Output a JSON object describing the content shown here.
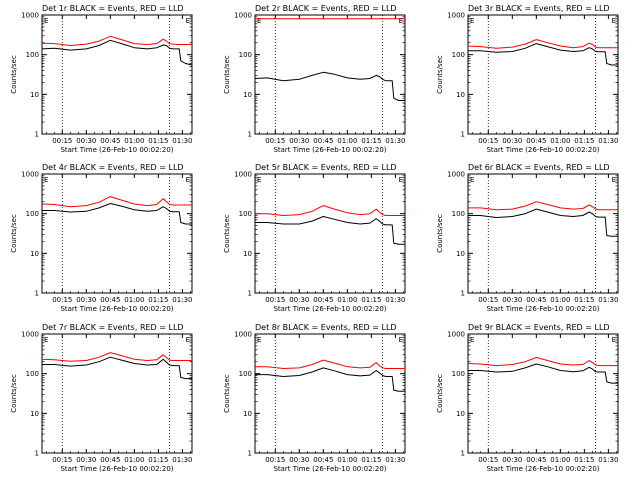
{
  "figure": {
    "background": "#ffffff"
  },
  "shared": {
    "xlabel": "Start Time (26-Feb-10 00:02:20)",
    "ylabel": "Counts/sec",
    "time_ticks": [
      "00:15",
      "00:30",
      "00:45",
      "01:00",
      "01:15",
      "01:30"
    ],
    "y_ticks": [
      "1",
      "10",
      "100",
      "1000"
    ],
    "end_marker": "E",
    "colors": {
      "events": "#000000",
      "lld": "#ff0000",
      "axes": "#000000"
    }
  },
  "chart_data": [
    {
      "type": "line",
      "title": "Det 1r BLACK = Events, RED = LLD",
      "xlabel": "Start Time (26-Feb-10 00:02:20)",
      "ylabel": "Counts/sec",
      "yscale": "log",
      "ylim": [
        1,
        1000
      ],
      "xlim_min": [
        2.33,
        96
      ],
      "dotted_lines_min": [
        15,
        82
      ],
      "series": [
        {
          "name": "Events",
          "color": "#000000",
          "x": [
            2.33,
            10,
            20,
            30,
            38,
            45,
            52,
            60,
            68,
            74,
            78,
            80,
            82,
            84,
            88,
            89,
            92,
            96
          ],
          "y": [
            140,
            145,
            130,
            140,
            170,
            230,
            190,
            150,
            140,
            150,
            175,
            170,
            145,
            140,
            140,
            70,
            60,
            55
          ]
        },
        {
          "name": "LLD",
          "color": "#ff0000",
          "x": [
            2.33,
            10,
            20,
            30,
            38,
            45,
            52,
            60,
            68,
            74,
            78,
            80,
            82,
            84,
            88,
            92,
            96
          ],
          "y": [
            195,
            190,
            170,
            185,
            220,
            290,
            240,
            190,
            180,
            190,
            245,
            220,
            190,
            185,
            180,
            180,
            180
          ]
        }
      ]
    },
    {
      "type": "line",
      "title": "Det 2r BLACK = Events, RED = LLD",
      "xlabel": "Start Time (26-Feb-10 00:02:20)",
      "ylabel": "Counts/sec",
      "yscale": "log",
      "ylim": [
        1,
        1000
      ],
      "xlim_min": [
        2.33,
        96
      ],
      "dotted_lines_min": [
        15,
        82
      ],
      "series": [
        {
          "name": "Events",
          "color": "#000000",
          "x": [
            2.33,
            10,
            20,
            30,
            38,
            45,
            52,
            60,
            68,
            74,
            78,
            80,
            82,
            84,
            88,
            89,
            92,
            96
          ],
          "y": [
            25,
            26,
            22,
            24,
            30,
            36,
            32,
            26,
            24,
            25,
            30,
            28,
            24,
            22,
            22,
            8,
            7,
            7
          ]
        },
        {
          "name": "LLD",
          "color": "#ff0000",
          "x": [
            2.33,
            20,
            40,
            60,
            80,
            96
          ],
          "y": [
            800,
            800,
            800,
            800,
            800,
            800
          ]
        }
      ]
    },
    {
      "type": "line",
      "title": "Det 3r BLACK = Events, RED = LLD",
      "xlabel": "Start Time (26-Feb-10 00:02:20)",
      "ylabel": "Counts/sec",
      "yscale": "log",
      "ylim": [
        1,
        1000
      ],
      "xlim_min": [
        2.33,
        96
      ],
      "dotted_lines_min": [
        15,
        82
      ],
      "series": [
        {
          "name": "Events",
          "color": "#000000",
          "x": [
            2.33,
            10,
            20,
            30,
            38,
            45,
            52,
            60,
            68,
            74,
            78,
            80,
            82,
            84,
            88,
            89,
            92,
            96
          ],
          "y": [
            125,
            125,
            115,
            120,
            145,
            190,
            160,
            130,
            120,
            125,
            150,
            140,
            120,
            118,
            118,
            60,
            55,
            55
          ]
        },
        {
          "name": "LLD",
          "color": "#ff0000",
          "x": [
            2.33,
            10,
            20,
            30,
            38,
            45,
            52,
            60,
            68,
            74,
            78,
            80,
            82,
            84,
            88,
            92,
            96
          ],
          "y": [
            165,
            160,
            145,
            155,
            185,
            240,
            200,
            165,
            150,
            160,
            195,
            180,
            155,
            150,
            150,
            150,
            150
          ]
        }
      ]
    },
    {
      "type": "line",
      "title": "Det 4r BLACK = Events, RED = LLD",
      "xlabel": "Start Time (26-Feb-10 00:02:20)",
      "ylabel": "Counts/sec",
      "yscale": "log",
      "ylim": [
        1,
        1000
      ],
      "xlim_min": [
        2.33,
        96
      ],
      "dotted_lines_min": [
        15,
        82
      ],
      "series": [
        {
          "name": "Events",
          "color": "#000000",
          "x": [
            2.33,
            10,
            20,
            30,
            38,
            45,
            52,
            60,
            68,
            74,
            78,
            80,
            82,
            84,
            88,
            89,
            92,
            96
          ],
          "y": [
            120,
            120,
            110,
            115,
            140,
            180,
            155,
            125,
            115,
            120,
            150,
            135,
            115,
            112,
            112,
            60,
            55,
            55
          ]
        },
        {
          "name": "LLD",
          "color": "#ff0000",
          "x": [
            2.33,
            10,
            20,
            30,
            38,
            45,
            52,
            60,
            68,
            74,
            78,
            80,
            82,
            84,
            88,
            92,
            96
          ],
          "y": [
            175,
            170,
            150,
            160,
            195,
            270,
            220,
            175,
            160,
            170,
            240,
            200,
            170,
            165,
            165,
            165,
            165
          ]
        }
      ]
    },
    {
      "type": "line",
      "title": "Det 5r BLACK = Events, RED = LLD",
      "xlabel": "Start Time (26-Feb-10 00:02:20)",
      "ylabel": "Counts/sec",
      "yscale": "log",
      "ylim": [
        1,
        1000
      ],
      "xlim_min": [
        2.33,
        96
      ],
      "dotted_lines_min": [
        15,
        82
      ],
      "series": [
        {
          "name": "Events",
          "color": "#000000",
          "x": [
            2.33,
            10,
            20,
            30,
            38,
            45,
            52,
            60,
            68,
            74,
            78,
            80,
            82,
            84,
            88,
            89,
            92,
            96
          ],
          "y": [
            60,
            60,
            55,
            55,
            65,
            85,
            72,
            60,
            55,
            58,
            75,
            65,
            55,
            52,
            52,
            18,
            17,
            17
          ]
        },
        {
          "name": "LLD",
          "color": "#ff0000",
          "x": [
            2.33,
            10,
            20,
            30,
            38,
            45,
            52,
            60,
            68,
            74,
            78,
            80,
            82,
            84,
            88,
            92,
            96
          ],
          "y": [
            100,
            100,
            90,
            95,
            115,
            160,
            130,
            105,
            95,
            100,
            130,
            110,
            95,
            90,
            90,
            90,
            90
          ]
        }
      ]
    },
    {
      "type": "line",
      "title": "Det 6r BLACK = Events, RED = LLD",
      "xlabel": "Start Time (26-Feb-10 00:02:20)",
      "ylabel": "Counts/sec",
      "yscale": "log",
      "ylim": [
        1,
        1000
      ],
      "xlim_min": [
        2.33,
        96
      ],
      "dotted_lines_min": [
        15,
        82
      ],
      "series": [
        {
          "name": "Events",
          "color": "#000000",
          "x": [
            2.33,
            10,
            20,
            30,
            38,
            45,
            52,
            60,
            68,
            74,
            78,
            80,
            82,
            84,
            88,
            89,
            92,
            96
          ],
          "y": [
            90,
            90,
            80,
            85,
            100,
            130,
            110,
            90,
            85,
            90,
            110,
            100,
            85,
            82,
            82,
            28,
            27,
            27
          ]
        },
        {
          "name": "LLD",
          "color": "#ff0000",
          "x": [
            2.33,
            10,
            20,
            30,
            38,
            45,
            52,
            60,
            68,
            74,
            78,
            80,
            82,
            84,
            88,
            92,
            96
          ],
          "y": [
            140,
            140,
            125,
            130,
            155,
            200,
            170,
            140,
            130,
            135,
            165,
            150,
            130,
            125,
            125,
            125,
            125
          ]
        }
      ]
    },
    {
      "type": "line",
      "title": "Det 7r BLACK = Events, RED = LLD",
      "xlabel": "Start Time (26-Feb-10 00:02:20)",
      "ylabel": "Counts/sec",
      "yscale": "log",
      "ylim": [
        1,
        1000
      ],
      "xlim_min": [
        2.33,
        96
      ],
      "dotted_lines_min": [
        15,
        82
      ],
      "series": [
        {
          "name": "Events",
          "color": "#000000",
          "x": [
            2.33,
            10,
            20,
            30,
            38,
            45,
            52,
            60,
            68,
            74,
            78,
            80,
            82,
            84,
            88,
            89,
            92,
            96
          ],
          "y": [
            170,
            170,
            155,
            165,
            200,
            260,
            220,
            180,
            165,
            170,
            230,
            195,
            165,
            160,
            160,
            80,
            75,
            75
          ]
        },
        {
          "name": "LLD",
          "color": "#ff0000",
          "x": [
            2.33,
            10,
            20,
            30,
            38,
            45,
            52,
            60,
            68,
            74,
            78,
            80,
            82,
            84,
            88,
            92,
            96
          ],
          "y": [
            230,
            225,
            205,
            215,
            260,
            340,
            285,
            230,
            215,
            225,
            300,
            255,
            220,
            215,
            215,
            215,
            215
          ]
        }
      ]
    },
    {
      "type": "line",
      "title": "Det 8r BLACK = Events, RED = LLD",
      "xlabel": "Start Time (26-Feb-10 00:02:20)",
      "ylabel": "Counts/sec",
      "yscale": "log",
      "ylim": [
        1,
        1000
      ],
      "xlim_min": [
        2.33,
        96
      ],
      "dotted_lines_min": [
        15,
        82
      ],
      "series": [
        {
          "name": "Events",
          "color": "#000000",
          "x": [
            2.33,
            10,
            20,
            30,
            38,
            45,
            52,
            60,
            68,
            74,
            78,
            80,
            82,
            84,
            88,
            89,
            92,
            96
          ],
          "y": [
            95,
            95,
            85,
            90,
            110,
            140,
            118,
            95,
            88,
            92,
            120,
            105,
            90,
            85,
            85,
            38,
            36,
            36
          ]
        },
        {
          "name": "LLD",
          "color": "#ff0000",
          "x": [
            2.33,
            10,
            20,
            30,
            38,
            45,
            52,
            60,
            68,
            74,
            78,
            80,
            82,
            84,
            88,
            92,
            96
          ],
          "y": [
            150,
            150,
            135,
            140,
            170,
            220,
            185,
            150,
            140,
            145,
            190,
            160,
            140,
            135,
            135,
            135,
            135
          ]
        }
      ]
    },
    {
      "type": "line",
      "title": "Det 9r BLACK = Events, RED = LLD",
      "xlabel": "Start Time (26-Feb-10 00:02:20)",
      "ylabel": "Counts/sec",
      "yscale": "log",
      "ylim": [
        1,
        1000
      ],
      "xlim_min": [
        2.33,
        96
      ],
      "dotted_lines_min": [
        15,
        82
      ],
      "series": [
        {
          "name": "Events",
          "color": "#000000",
          "x": [
            2.33,
            10,
            20,
            30,
            38,
            45,
            52,
            60,
            68,
            74,
            78,
            80,
            82,
            84,
            88,
            89,
            92,
            96
          ],
          "y": [
            120,
            120,
            110,
            115,
            140,
            175,
            150,
            120,
            112,
            118,
            145,
            130,
            112,
            110,
            110,
            62,
            58,
            58
          ]
        },
        {
          "name": "LLD",
          "color": "#ff0000",
          "x": [
            2.33,
            10,
            20,
            30,
            38,
            45,
            52,
            60,
            68,
            74,
            78,
            80,
            82,
            84,
            88,
            92,
            96
          ],
          "y": [
            180,
            175,
            160,
            170,
            200,
            255,
            215,
            175,
            165,
            170,
            215,
            190,
            165,
            160,
            160,
            160,
            160
          ]
        }
      ]
    }
  ]
}
